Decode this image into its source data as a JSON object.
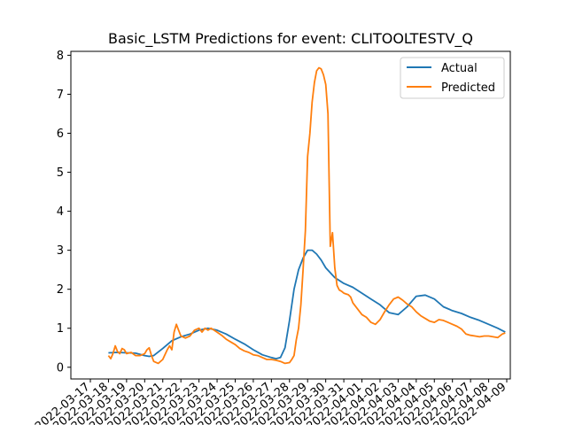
{
  "chart_data": {
    "type": "line",
    "title": "Basic_LSTM Predictions for event: CLITOOLTESTV_Q",
    "xlabel": "",
    "ylabel": "",
    "xlim": [
      "2022-03-17",
      "2022-04-09"
    ],
    "ylim": [
      -0.3,
      8.1
    ],
    "yticks": [
      0,
      1,
      2,
      3,
      4,
      5,
      6,
      7,
      8
    ],
    "xticks": [
      "2022-03-17",
      "2022-03-18",
      "2022-03-19",
      "2022-03-20",
      "2022-03-21",
      "2022-03-22",
      "2022-03-23",
      "2022-03-24",
      "2022-03-25",
      "2022-03-26",
      "2022-03-27",
      "2022-03-28",
      "2022-03-29",
      "2022-03-30",
      "2022-03-31",
      "2022-04-01",
      "2022-04-02",
      "2022-04-03",
      "2022-04-04",
      "2022-04-05",
      "2022-04-06",
      "2022-04-07",
      "2022-04-08",
      "2022-04-09"
    ],
    "xtick_labels": [
      "2022-03-17",
      "2022-03-18",
      "2022-03-19",
      "2022-03-20",
      "2022-03-21",
      "2022-03-22",
      "2022-03-23",
      "2022-03-24",
      "2022-03-25",
      "2022-03-26",
      "2022-03-27",
      "2022-03-28",
      "2022-03-29",
      "2022-03-30",
      "2022-03-31",
      "2022-04-01",
      "2022-04-02",
      "2022-04-03",
      "2022-04-04",
      "2022-04-05",
      "2022-04-06",
      "2022-04-07",
      "2022-04-08",
      "2022-04-09"
    ],
    "grid": false,
    "legend_position": "top-right",
    "series": [
      {
        "name": "Actual",
        "color": "#1f77b4",
        "x": [
          "2022-03-18",
          "2022-03-18T12:00",
          "2022-03-19",
          "2022-03-19T12:00",
          "2022-03-20",
          "2022-03-20T06:00",
          "2022-03-20T12:00",
          "2022-03-21",
          "2022-03-21T12:00",
          "2022-03-22",
          "2022-03-22T12:00",
          "2022-03-23",
          "2022-03-23T12:00",
          "2022-03-24",
          "2022-03-24T12:00",
          "2022-03-25",
          "2022-03-25T12:00",
          "2022-03-26",
          "2022-03-26T12:00",
          "2022-03-27",
          "2022-03-27T06:00",
          "2022-03-27T12:00",
          "2022-03-27T18:00",
          "2022-03-28",
          "2022-03-28T06:00",
          "2022-03-28T12:00",
          "2022-03-28T18:00",
          "2022-03-29",
          "2022-03-29T06:00",
          "2022-03-29T12:00",
          "2022-03-29T18:00",
          "2022-03-30",
          "2022-03-30T12:00",
          "2022-03-31",
          "2022-03-31T12:00",
          "2022-04-01",
          "2022-04-01T12:00",
          "2022-04-02",
          "2022-04-02T12:00",
          "2022-04-03",
          "2022-04-03T12:00",
          "2022-04-04",
          "2022-04-04T12:00",
          "2022-04-05",
          "2022-04-05T12:00",
          "2022-04-06",
          "2022-04-06T12:00",
          "2022-04-07",
          "2022-04-07T12:00",
          "2022-04-08",
          "2022-04-08T12:00",
          "2022-04-08T22:00"
        ],
        "y": [
          0.37,
          0.38,
          0.37,
          0.36,
          0.3,
          0.28,
          0.3,
          0.48,
          0.68,
          0.78,
          0.85,
          0.95,
          1.0,
          0.95,
          0.85,
          0.72,
          0.6,
          0.45,
          0.32,
          0.25,
          0.22,
          0.25,
          0.5,
          1.2,
          2.0,
          2.5,
          2.8,
          3.0,
          3.0,
          2.9,
          2.75,
          2.55,
          2.3,
          2.15,
          2.05,
          1.9,
          1.75,
          1.6,
          1.4,
          1.35,
          1.55,
          1.82,
          1.85,
          1.75,
          1.55,
          1.45,
          1.38,
          1.28,
          1.2,
          1.1,
          1.0,
          0.9
        ]
      },
      {
        "name": "Predicted",
        "color": "#ff7f0e",
        "x": [
          "2022-03-18",
          "2022-03-18T03:00",
          "2022-03-18T06:00",
          "2022-03-18T09:00",
          "2022-03-18T12:00",
          "2022-03-18T15:00",
          "2022-03-18T18:00",
          "2022-03-18T21:00",
          "2022-03-19",
          "2022-03-19T06:00",
          "2022-03-19T12:00",
          "2022-03-19T18:00",
          "2022-03-20",
          "2022-03-20T03:00",
          "2022-03-20T06:00",
          "2022-03-20T09:00",
          "2022-03-20T12:00",
          "2022-03-20T18:00",
          "2022-03-21",
          "2022-03-21T06:00",
          "2022-03-21T09:00",
          "2022-03-21T12:00",
          "2022-03-21T15:00",
          "2022-03-21T18:00",
          "2022-03-21T21:00",
          "2022-03-22",
          "2022-03-22T06:00",
          "2022-03-22T12:00",
          "2022-03-22T18:00",
          "2022-03-23",
          "2022-03-23T04:00",
          "2022-03-23T08:00",
          "2022-03-23T12:00",
          "2022-03-23T16:00",
          "2022-03-23T20:00",
          "2022-03-24",
          "2022-03-24T06:00",
          "2022-03-24T12:00",
          "2022-03-24T18:00",
          "2022-03-25",
          "2022-03-25T06:00",
          "2022-03-25T12:00",
          "2022-03-25T18:00",
          "2022-03-26",
          "2022-03-26T06:00",
          "2022-03-26T12:00",
          "2022-03-26T18:00",
          "2022-03-27",
          "2022-03-27T06:00",
          "2022-03-27T12:00",
          "2022-03-27T18:00",
          "2022-03-28",
          "2022-03-28T03:00",
          "2022-03-28T06:00",
          "2022-03-28T09:00",
          "2022-03-28T12:00",
          "2022-03-28T15:00",
          "2022-03-28T18:00",
          "2022-03-28T21:00",
          "2022-03-29",
          "2022-03-29T03:00",
          "2022-03-29T06:00",
          "2022-03-29T09:00",
          "2022-03-29T12:00",
          "2022-03-29T15:00",
          "2022-03-29T18:00",
          "2022-03-29T21:00",
          "2022-03-30",
          "2022-03-30T03:00",
          "2022-03-30T06:00",
          "2022-03-30T09:00",
          "2022-03-30T12:00",
          "2022-03-30T15:00",
          "2022-03-30T18:00",
          "2022-03-30T21:00",
          "2022-03-31",
          "2022-03-31T03:00",
          "2022-03-31T06:00",
          "2022-03-31T09:00",
          "2022-03-31T12:00",
          "2022-03-31T18:00",
          "2022-04-01",
          "2022-04-01T06:00",
          "2022-04-01T12:00",
          "2022-04-01T18:00",
          "2022-04-02",
          "2022-04-02T06:00",
          "2022-04-02T12:00",
          "2022-04-02T18:00",
          "2022-04-03",
          "2022-04-03T06:00",
          "2022-04-03T12:00",
          "2022-04-03T18:00",
          "2022-04-04",
          "2022-04-04T06:00",
          "2022-04-04T12:00",
          "2022-04-04T18:00",
          "2022-04-05",
          "2022-04-05T06:00",
          "2022-04-05T12:00",
          "2022-04-05T18:00",
          "2022-04-06",
          "2022-04-06T06:00",
          "2022-04-06T12:00",
          "2022-04-06T18:00",
          "2022-04-07",
          "2022-04-07T06:00",
          "2022-04-07T12:00",
          "2022-04-07T18:00",
          "2022-04-08",
          "2022-04-08T06:00",
          "2022-04-08T12:00",
          "2022-04-08T18:00",
          "2022-04-08T22:00"
        ],
        "y": [
          0.3,
          0.22,
          0.35,
          0.55,
          0.4,
          0.35,
          0.48,
          0.45,
          0.35,
          0.38,
          0.3,
          0.3,
          0.35,
          0.45,
          0.5,
          0.3,
          0.15,
          0.1,
          0.2,
          0.45,
          0.55,
          0.45,
          0.9,
          1.1,
          0.95,
          0.8,
          0.75,
          0.8,
          0.95,
          1.0,
          0.9,
          1.0,
          0.95,
          1.0,
          0.95,
          0.9,
          0.82,
          0.72,
          0.65,
          0.58,
          0.48,
          0.42,
          0.38,
          0.32,
          0.3,
          0.25,
          0.2,
          0.2,
          0.18,
          0.15,
          0.1,
          0.12,
          0.2,
          0.3,
          0.7,
          1.0,
          1.6,
          2.5,
          3.5,
          5.4,
          6.0,
          6.8,
          7.3,
          7.6,
          7.68,
          7.65,
          7.5,
          7.25,
          6.5,
          3.1,
          3.45,
          2.55,
          2.1,
          1.98,
          1.95,
          1.9,
          1.88,
          1.86,
          1.8,
          1.65,
          1.5,
          1.35,
          1.28,
          1.15,
          1.1,
          1.22,
          1.42,
          1.6,
          1.75,
          1.8,
          1.72,
          1.62,
          1.55,
          1.42,
          1.32,
          1.25,
          1.18,
          1.15,
          1.22,
          1.2,
          1.15,
          1.1,
          1.05,
          0.98,
          0.85,
          0.82,
          0.8,
          0.78,
          0.8,
          0.8,
          0.78,
          0.76,
          0.85,
          0.88
        ]
      }
    ]
  }
}
